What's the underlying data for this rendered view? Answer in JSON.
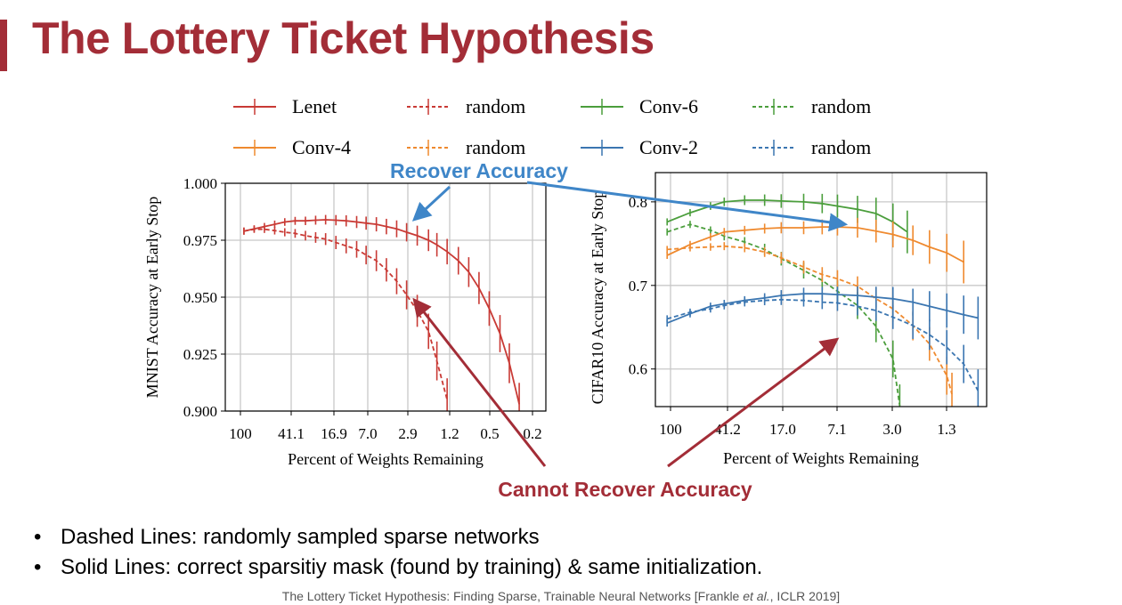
{
  "slide": {
    "title": "The Lottery Ticket Hypothesis",
    "accent_color": "#a32d37",
    "bullets": [
      "Dashed Lines: randomly sampled sparse networks",
      "Solid Lines: correct sparsitiy mask (found by training) & same initialization."
    ],
    "citation": {
      "before": "The Lottery Ticket Hypothesis: Finding Sparse, Trainable Neural Networks [Frankle ",
      "italic": "et al.",
      "after": ", ICLR 2019]"
    }
  },
  "legend": {
    "entries": [
      {
        "label": "Lenet",
        "color": "#c93a35",
        "style": "solid"
      },
      {
        "label": "random",
        "color": "#c93a35",
        "style": "dashed"
      },
      {
        "label": "Conv-6",
        "color": "#4b9e3c",
        "style": "solid"
      },
      {
        "label": "random",
        "color": "#4b9e3c",
        "style": "dashed"
      },
      {
        "label": "Conv-4",
        "color": "#ef8a2f",
        "style": "solid"
      },
      {
        "label": "random",
        "color": "#ef8a2f",
        "style": "dashed"
      },
      {
        "label": "Conv-2",
        "color": "#3b76b1",
        "style": "solid"
      },
      {
        "label": "random",
        "color": "#3b76b1",
        "style": "dashed"
      }
    ]
  },
  "annotations": {
    "recover": {
      "text": "Recover Accuracy",
      "color": "#3f86c8"
    },
    "cannot": {
      "text": "Cannot Recover Accuracy",
      "color": "#a32d37"
    }
  },
  "chart_data": [
    {
      "type": "line",
      "xlabel": "Percent of Weights Remaining",
      "ylabel": "MNIST Accuracy at Early Stop",
      "x_ticks": [
        "100",
        "41.1",
        "16.9",
        "7.0",
        "2.9",
        "1.2",
        "0.5",
        "0.2"
      ],
      "y_ticks": [
        "0.900",
        "0.925",
        "0.950",
        "0.975",
        "1.000"
      ],
      "x_scale": "log",
      "x_direction": "reversed",
      "xlim": [
        150,
        0.14
      ],
      "ylim": [
        0.9,
        1.0
      ],
      "grid": true,
      "series": [
        {
          "name": "Lenet",
          "style": "solid",
          "color": "#c93a35",
          "x": [
            100,
            80,
            64,
            51.2,
            41.1,
            32.8,
            26.2,
            21.0,
            16.9,
            13.5,
            10.8,
            8.6,
            7.0,
            5.6,
            4.5,
            3.6,
            2.9,
            2.3,
            1.8,
            1.5,
            1.2,
            0.94,
            0.75,
            0.6,
            0.48,
            0.38,
            0.31,
            0.25
          ],
          "y": [
            0.979,
            0.98,
            0.981,
            0.982,
            0.983,
            0.9835,
            0.9835,
            0.9838,
            0.984,
            0.9838,
            0.9835,
            0.983,
            0.9825,
            0.982,
            0.981,
            0.98,
            0.9785,
            0.977,
            0.975,
            0.973,
            0.97,
            0.966,
            0.961,
            0.954,
            0.945,
            0.934,
            0.921,
            0.903
          ]
        },
        {
          "name": "random",
          "style": "dashed",
          "color": "#c93a35",
          "x": [
            100,
            80,
            64,
            51.2,
            41.1,
            32.8,
            26.2,
            21.0,
            16.9,
            13.5,
            10.8,
            8.6,
            7.0,
            5.6,
            4.5,
            3.6,
            2.9,
            2.3,
            1.8,
            1.5,
            1.2
          ],
          "y": [
            0.979,
            0.9798,
            0.9798,
            0.9792,
            0.9785,
            0.978,
            0.977,
            0.9762,
            0.9755,
            0.974,
            0.9725,
            0.971,
            0.9685,
            0.966,
            0.962,
            0.957,
            0.951,
            0.944,
            0.935,
            0.922,
            0.905
          ]
        }
      ]
    },
    {
      "type": "line",
      "xlabel": "Percent of Weights Remaining",
      "ylabel": "CIFAR10 Accuracy at Early Stop",
      "x_ticks": [
        "100",
        "41.2",
        "17.0",
        "7.1",
        "3.0",
        "1.3"
      ],
      "y_ticks": [
        "0.6",
        "0.7",
        "0.8"
      ],
      "x_scale": "log",
      "x_direction": "reversed",
      "xlim": [
        120,
        0.7
      ],
      "ylim": [
        0.555,
        0.835
      ],
      "grid": true,
      "series": [
        {
          "name": "Conv-6",
          "style": "solid",
          "color": "#4b9e3c",
          "x": [
            100,
            70,
            51,
            41.2,
            30,
            22,
            17.0,
            12,
            9,
            7.1,
            5.2,
            3.9,
            3.0,
            2.4
          ],
          "y": [
            0.776,
            0.787,
            0.795,
            0.8,
            0.802,
            0.802,
            0.801,
            0.8,
            0.798,
            0.795,
            0.791,
            0.786,
            0.776,
            0.764
          ]
        },
        {
          "name": "random",
          "style": "dashed",
          "color": "#4b9e3c",
          "x": [
            100,
            70,
            51,
            41.2,
            30,
            22,
            17.0,
            12,
            9,
            7.1,
            5.2,
            3.9,
            3.0,
            2.7
          ],
          "y": [
            0.764,
            0.773,
            0.766,
            0.759,
            0.752,
            0.743,
            0.732,
            0.718,
            0.706,
            0.693,
            0.676,
            0.651,
            0.612,
            0.556
          ]
        },
        {
          "name": "Conv-4",
          "style": "solid",
          "color": "#ef8a2f",
          "x": [
            100,
            70,
            51,
            41.2,
            30,
            22,
            17.0,
            12,
            9,
            7.1,
            5.2,
            3.9,
            3.0,
            2.2,
            1.7,
            1.3,
            1.0
          ],
          "y": [
            0.736,
            0.749,
            0.758,
            0.764,
            0.766,
            0.768,
            0.769,
            0.769,
            0.77,
            0.77,
            0.769,
            0.765,
            0.761,
            0.754,
            0.746,
            0.739,
            0.728
          ]
        },
        {
          "name": "random",
          "style": "dashed",
          "color": "#ef8a2f",
          "x": [
            100,
            70,
            51,
            41.2,
            30,
            22,
            17.0,
            12,
            9,
            7.1,
            5.2,
            3.9,
            3.0,
            2.2,
            1.7,
            1.3,
            1.2
          ],
          "y": [
            0.743,
            0.745,
            0.746,
            0.747,
            0.745,
            0.74,
            0.733,
            0.722,
            0.713,
            0.708,
            0.699,
            0.684,
            0.672,
            0.652,
            0.63,
            0.592,
            0.57
          ]
        },
        {
          "name": "Conv-2",
          "style": "solid",
          "color": "#3b76b1",
          "x": [
            100,
            70,
            51,
            41.2,
            30,
            22,
            17.0,
            12,
            9,
            7.1,
            5.2,
            3.9,
            3.0,
            2.2,
            1.7,
            1.3,
            1.0,
            0.8
          ],
          "y": [
            0.655,
            0.666,
            0.675,
            0.678,
            0.682,
            0.685,
            0.688,
            0.69,
            0.69,
            0.689,
            0.688,
            0.686,
            0.684,
            0.68,
            0.675,
            0.67,
            0.665,
            0.661
          ]
        },
        {
          "name": "random",
          "style": "dashed",
          "color": "#3b76b1",
          "x": [
            100,
            70,
            51,
            41.2,
            30,
            22,
            17.0,
            12,
            9,
            7.1,
            5.2,
            3.9,
            3.0,
            2.2,
            1.7,
            1.3,
            1.0,
            0.8
          ],
          "y": [
            0.66,
            0.668,
            0.672,
            0.676,
            0.68,
            0.682,
            0.683,
            0.682,
            0.68,
            0.679,
            0.675,
            0.67,
            0.662,
            0.652,
            0.641,
            0.626,
            0.606,
            0.574
          ]
        }
      ]
    }
  ]
}
